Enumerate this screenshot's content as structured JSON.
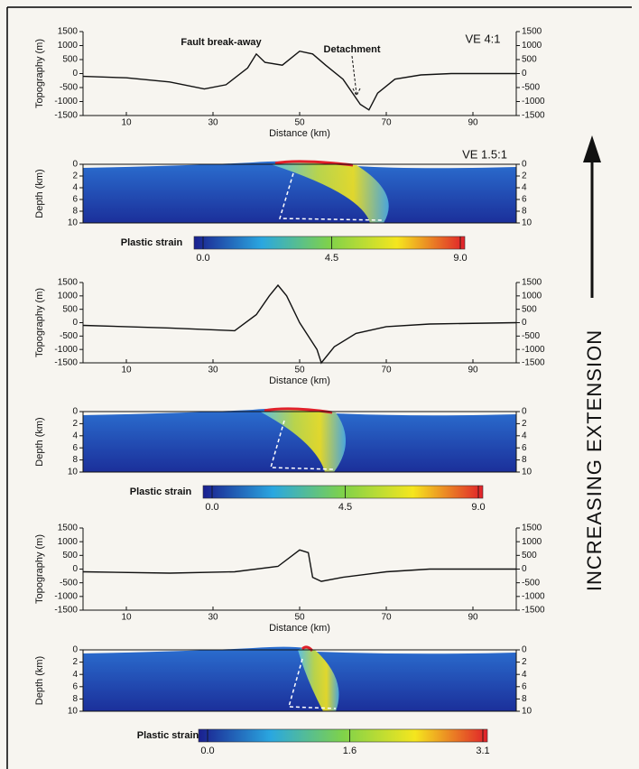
{
  "chart_data": [
    {
      "type": "line",
      "xlabel": "Distance (km)",
      "ylabel": "Topography (m)",
      "ve": "VE 4:1",
      "annotations": [
        "Fault break-away",
        "Detachment"
      ],
      "x": [
        0,
        10,
        20,
        28,
        33,
        38,
        40,
        42,
        46,
        50,
        53,
        56,
        60,
        64,
        66,
        68,
        72,
        78,
        85,
        100
      ],
      "values": [
        -100,
        -150,
        -300,
        -550,
        -400,
        200,
        700,
        400,
        300,
        800,
        700,
        300,
        -200,
        -1100,
        -1300,
        -700,
        -200,
        -50,
        0,
        0
      ],
      "color": "#111111",
      "xlim": [
        0,
        100
      ],
      "xticks": [
        10,
        30,
        50,
        70,
        90
      ],
      "ylim": [
        -1500,
        1500
      ],
      "yticks": [
        -1500,
        -1000,
        -500,
        0,
        500,
        1000,
        1500
      ]
    },
    {
      "type": "field",
      "ylabel": "Depth (km)",
      "ve": "VE 1.5:1",
      "ylim": [
        10,
        0
      ],
      "yticks": [
        0,
        2,
        4,
        6,
        8,
        10
      ],
      "colorbar": {
        "label": "Plastic strain",
        "lim": [
          0,
          9
        ],
        "ticks": [
          {
            "value": 0,
            "label": "0.0"
          },
          {
            "value": 4.5,
            "label": "4.5"
          },
          {
            "value": 9,
            "label": "9.0"
          }
        ]
      }
    },
    {
      "type": "line",
      "xlabel": "Distance (km)",
      "ylabel": "Topography (m)",
      "x": [
        0,
        20,
        35,
        40,
        43,
        45,
        47,
        50,
        54,
        55,
        58,
        63,
        70,
        80,
        100
      ],
      "values": [
        -100,
        -200,
        -300,
        300,
        1000,
        1400,
        1000,
        0,
        -1000,
        -1500,
        -900,
        -400,
        -150,
        -50,
        0
      ],
      "color": "#111111",
      "xlim": [
        0,
        100
      ],
      "xticks": [
        10,
        30,
        50,
        70,
        90
      ],
      "ylim": [
        -1500,
        1500
      ],
      "yticks": [
        -1500,
        -1000,
        -500,
        0,
        500,
        1000,
        1500
      ]
    },
    {
      "type": "field",
      "ylabel": "Depth (km)",
      "ylim": [
        10,
        0
      ],
      "yticks": [
        0,
        2,
        4,
        6,
        8,
        10
      ],
      "colorbar": {
        "label": "Plastic strain",
        "lim": [
          0,
          9
        ],
        "ticks": [
          {
            "value": 0,
            "label": "0.0"
          },
          {
            "value": 4.5,
            "label": "4.5"
          },
          {
            "value": 9,
            "label": "9.0"
          }
        ]
      }
    },
    {
      "type": "line",
      "xlabel": "Distance (km)",
      "ylabel": "Topography (m)",
      "x": [
        0,
        20,
        35,
        45,
        50,
        52,
        53,
        55,
        60,
        70,
        80,
        100
      ],
      "values": [
        -100,
        -150,
        -100,
        100,
        700,
        600,
        -300,
        -450,
        -300,
        -100,
        0,
        0
      ],
      "color": "#111111",
      "xlim": [
        0,
        100
      ],
      "xticks": [
        10,
        30,
        50,
        70,
        90
      ],
      "ylim": [
        -1500,
        1500
      ],
      "yticks": [
        -1500,
        -1000,
        -500,
        0,
        500,
        1000,
        1500
      ]
    },
    {
      "type": "field",
      "ylabel": "Depth (km)",
      "ylim": [
        10,
        0
      ],
      "yticks": [
        0,
        2,
        4,
        6,
        8,
        10
      ],
      "colorbar": {
        "label": "Plastic strain",
        "lim": [
          0,
          3.1
        ],
        "ticks": [
          {
            "value": 0,
            "label": "0.0"
          },
          {
            "value": 1.6,
            "label": "1.6"
          },
          {
            "value": 3.1,
            "label": "3.1"
          }
        ]
      }
    }
  ],
  "side_label": "INCREASING EXTENSION"
}
